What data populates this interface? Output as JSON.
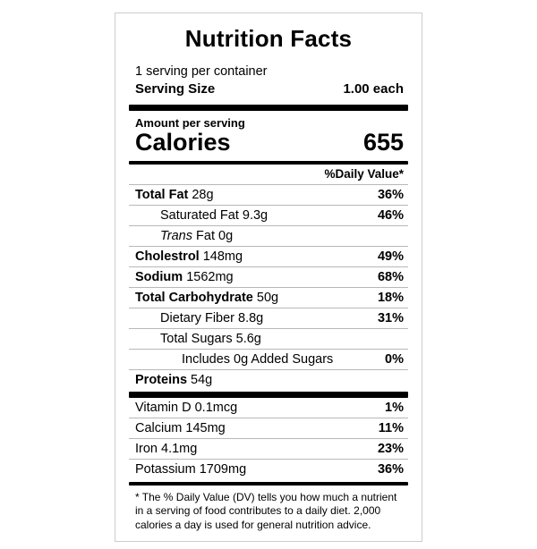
{
  "label": {
    "title": "Nutrition Facts",
    "servings_per_container": "1 serving per container",
    "serving_size_label": "Serving Size",
    "serving_size_value": "1.00 each",
    "amount_per_serving": "Amount per serving",
    "calories_label": "Calories",
    "calories_value": "655",
    "daily_value_header": "%Daily Value*",
    "nutrients": [
      {
        "name": "Total Fat",
        "amount": "28g",
        "dv": "36%",
        "bold": true,
        "indent": 0
      },
      {
        "name": "Saturated Fat",
        "amount": "9.3g",
        "dv": "46%",
        "bold": false,
        "indent": 1
      },
      {
        "name_italic": "Trans",
        "name": "Fat",
        "amount": "0g",
        "dv": "",
        "bold": false,
        "indent": 1
      },
      {
        "name": "Cholestrol",
        "amount": "148mg",
        "dv": "49%",
        "bold": true,
        "indent": 0
      },
      {
        "name": "Sodium",
        "amount": "1562mg",
        "dv": "68%",
        "bold": true,
        "indent": 0
      },
      {
        "name": "Total Carbohydrate",
        "amount": "50g",
        "dv": "18%",
        "bold": true,
        "indent": 0
      },
      {
        "name": "Dietary Fiber",
        "amount": "8.8g",
        "dv": "31%",
        "bold": false,
        "indent": 1
      },
      {
        "name": "Total Sugars",
        "amount": "5.6g",
        "dv": "",
        "bold": false,
        "indent": 1
      },
      {
        "name": "Includes 0g Added Sugars",
        "amount": "",
        "dv": "0%",
        "bold": false,
        "indent": 2
      },
      {
        "name": "Proteins",
        "amount": "54g",
        "dv": "",
        "bold": true,
        "indent": 0
      }
    ],
    "vitamins": [
      {
        "name": "Vitamin D",
        "amount": "0.1mcg",
        "dv": "1%",
        "bold": false,
        "indent": 0
      },
      {
        "name": "Calcium",
        "amount": "145mg",
        "dv": "11%",
        "bold": false,
        "indent": 0
      },
      {
        "name": "Iron",
        "amount": "4.1mg",
        "dv": "23%",
        "bold": false,
        "indent": 0
      },
      {
        "name": "Potassium",
        "amount": "1709mg",
        "dv": "36%",
        "bold": false,
        "indent": 0
      }
    ],
    "footnote": "* The % Daily Value (DV) tells you how much a nutrient in a serving of food contributes to a daily diet. 2,000 calories a day is used for general nutrition advice."
  },
  "colors": {
    "text": "#000000",
    "card_border": "#cccccc",
    "section_bar": "#000000",
    "row_rule": "#b8b8b8",
    "background": "#ffffff"
  }
}
